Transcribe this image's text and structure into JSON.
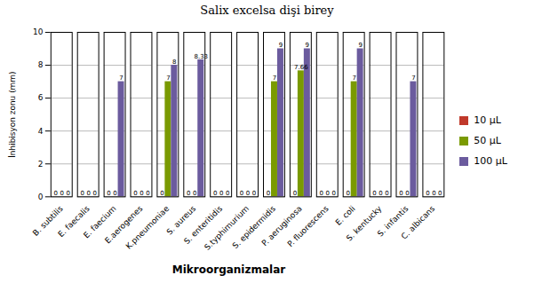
{
  "chart_data": {
    "type": "bar",
    "title": "Salix excelsa dişi birey",
    "xlabel": "Mikroorganizmalar",
    "ylabel": "İnhibisyon zonu (mm)",
    "categories": [
      "B. subtilis",
      "E. faecalis",
      "E. faecium",
      "E.aerogenes",
      "K.pneumoniae",
      "S. aureus",
      "S. enteritidis",
      "S.typhimurium",
      "S. epidermidis",
      "P. aeruginosa",
      "P. fluorescens",
      "E. coli",
      "S. kentucky",
      "S. infantis",
      "C. albicans"
    ],
    "series": [
      {
        "name": "10 μL",
        "color": "#c0392b",
        "values": [
          0,
          0,
          0,
          0,
          0,
          0,
          0,
          0,
          0,
          0,
          0,
          0,
          0,
          0,
          0
        ]
      },
      {
        "name": "50 μL",
        "color": "#7a9a01",
        "values": [
          0,
          0,
          0,
          0,
          7,
          0,
          0,
          0,
          7,
          7.66,
          0,
          7,
          0,
          0,
          0
        ]
      },
      {
        "name": "100 μL",
        "color": "#6b5b9e",
        "values": [
          0,
          0,
          7,
          0,
          8,
          8.33,
          0,
          0,
          9,
          9,
          0,
          9,
          0,
          7,
          0
        ]
      }
    ],
    "ylim": [
      0,
      10
    ],
    "yticks": [
      0,
      2,
      4,
      6,
      8,
      10
    ],
    "grid": true,
    "data_labels": true,
    "legend": "right"
  }
}
